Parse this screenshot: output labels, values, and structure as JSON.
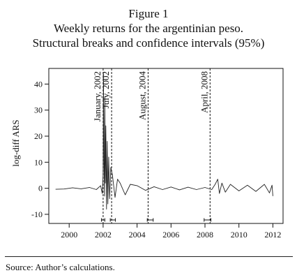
{
  "header": {
    "figure_label": "Figure 1",
    "title": "Weekly returns for the argentinian peso.",
    "subtitle": "Structural breaks and confidence intervals (95%)"
  },
  "footer": {
    "source": "Source: Author’s calculations."
  },
  "chart_data": {
    "type": "line",
    "title": "Weekly returns for the argentinian peso.",
    "subtitle": "Structural breaks and confidence intervals (95%)",
    "xlabel": "",
    "ylabel": "log-diff ARS",
    "xlim": [
      1998.8,
      2012.6
    ],
    "ylim": [
      -13.5,
      46
    ],
    "xticks": [
      2000,
      2002,
      2004,
      2006,
      2008,
      2010,
      2012
    ],
    "xtick_labels": [
      "2000",
      "2002",
      "2004",
      "2006",
      "2008",
      "2010",
      "2012"
    ],
    "yticks": [
      -10,
      0,
      10,
      20,
      30,
      40
    ],
    "ytick_labels": [
      "-10",
      "0",
      "10",
      "20",
      "30",
      "40"
    ],
    "grid": false,
    "series": [
      {
        "color": "#222222",
        "x": [
          1999.2,
          1999.7,
          2000.2,
          2000.7,
          2001.2,
          2001.6,
          2001.85,
          2001.95,
          2002.0,
          2002.02,
          2002.05,
          2002.08,
          2002.1,
          2002.13,
          2002.16,
          2002.2,
          2002.24,
          2002.28,
          2002.33,
          2002.38,
          2002.45,
          2002.55,
          2002.7,
          2002.85,
          2003.0,
          2003.3,
          2003.6,
          2004.0,
          2004.5,
          2005.0,
          2005.5,
          2006.0,
          2006.5,
          2007.0,
          2007.5,
          2008.0,
          2008.4,
          2008.6,
          2008.75,
          2008.85,
          2009.0,
          2009.2,
          2009.5,
          2010.0,
          2010.5,
          2011.0,
          2011.5,
          2011.8,
          2011.95,
          2012.0
        ],
        "values": [
          -0.4,
          -0.3,
          0.2,
          -0.2,
          0.3,
          -0.5,
          1.0,
          -2.0,
          5.0,
          44.0,
          10.0,
          -3.0,
          35.0,
          2.0,
          24.0,
          -8.0,
          18.0,
          -6.0,
          12.0,
          -4.0,
          8.0,
          5.0,
          -3.5,
          3.5,
          2.0,
          -2.5,
          1.5,
          1.0,
          -0.8,
          0.6,
          -0.5,
          0.5,
          -0.6,
          0.4,
          -0.5,
          0.3,
          -0.5,
          1.5,
          3.5,
          -2.0,
          2.0,
          -1.5,
          1.5,
          -1.0,
          1.2,
          -1.2,
          1.5,
          -1.8,
          1.2,
          -3.0
        ]
      }
    ],
    "breaks": [
      {
        "label": "January, 2002",
        "x": 2002.0,
        "ci": [
          2001.9,
          2002.1
        ]
      },
      {
        "label": "July, 2002",
        "x": 2002.5,
        "ci": [
          2002.42,
          2002.72
        ]
      },
      {
        "label": "August, 2004",
        "x": 2004.65,
        "ci": [
          2004.6,
          2004.95
        ]
      },
      {
        "label": "April, 2008",
        "x": 2008.3,
        "ci": [
          2007.95,
          2008.35
        ]
      }
    ]
  }
}
